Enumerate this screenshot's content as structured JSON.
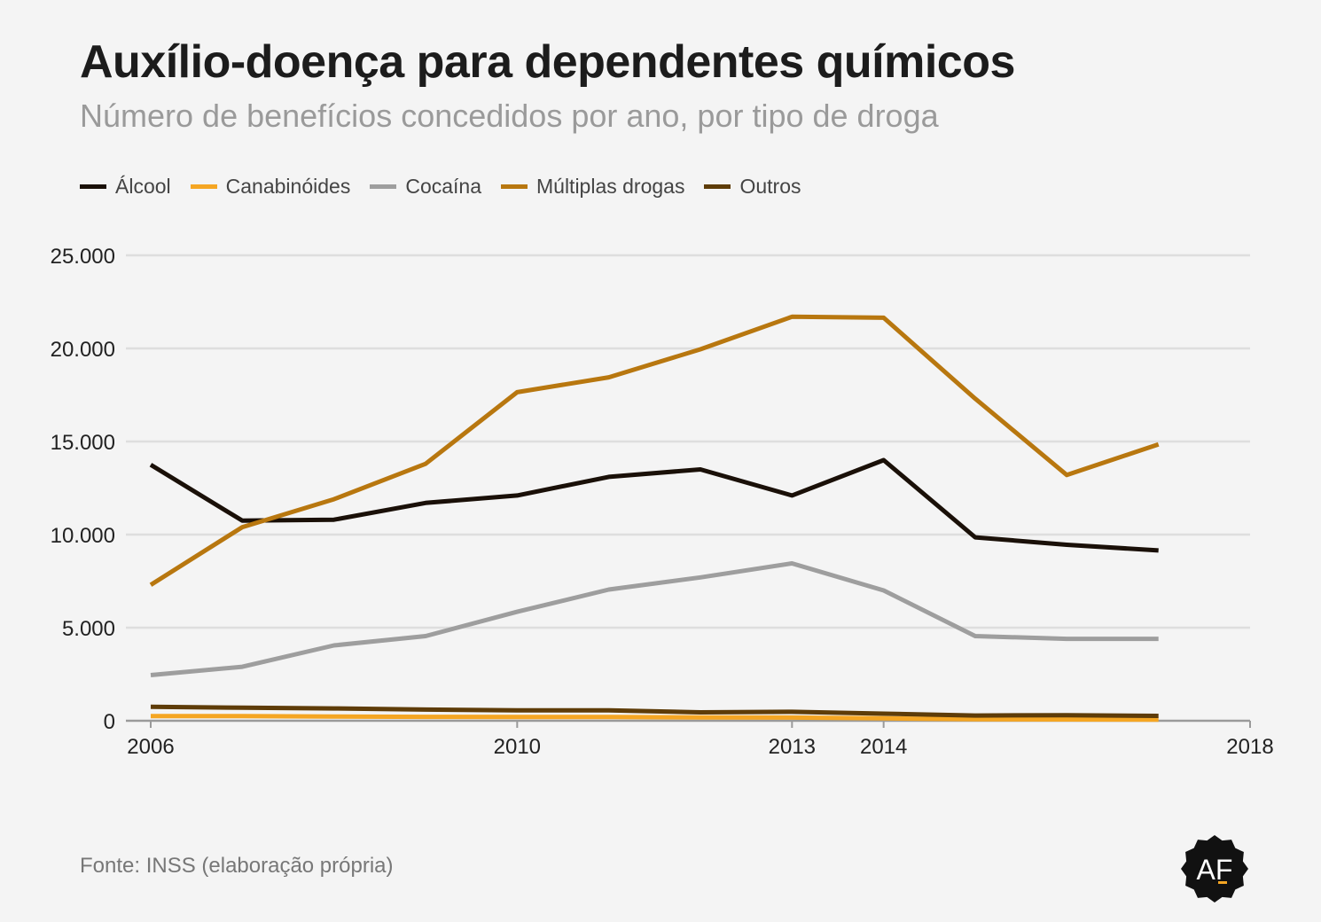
{
  "chart_data": {
    "type": "line",
    "title": "Auxílio-doença para dependentes químicos",
    "subtitle": "Número de benefícios concedidos por ano, por tipo de droga",
    "xlabel": "",
    "ylabel": "",
    "x": [
      2006,
      2007,
      2008,
      2009,
      2010,
      2011,
      2012,
      2013,
      2014,
      2015,
      2016,
      2017
    ],
    "xlim": [
      2006,
      2018
    ],
    "x_ticks": [
      2006,
      2010,
      2013,
      2014,
      2018
    ],
    "ylim": [
      0,
      25000
    ],
    "y_ticks": [
      0,
      5000,
      10000,
      15000,
      20000,
      25000
    ],
    "y_tick_labels": [
      "0",
      "5.000",
      "10.000",
      "15.000",
      "20.000",
      "25.000"
    ],
    "grid": true,
    "legend_position": "top-left",
    "series": [
      {
        "name": "Álcool",
        "color": "#1a1008",
        "values": [
          13750,
          10750,
          10800,
          11700,
          12100,
          13100,
          13500,
          12100,
          14000,
          9850,
          9450,
          9150
        ]
      },
      {
        "name": "Canabinóides",
        "color": "#f5a623",
        "values": [
          250,
          250,
          230,
          210,
          200,
          200,
          180,
          170,
          130,
          80,
          70,
          60
        ]
      },
      {
        "name": "Cocaína",
        "color": "#9e9e9e",
        "values": [
          2450,
          2900,
          4050,
          4550,
          5850,
          7050,
          7700,
          8450,
          7000,
          4550,
          4400,
          4400
        ]
      },
      {
        "name": "Múltiplas drogas",
        "color": "#b8770f",
        "values": [
          7300,
          10400,
          11900,
          13800,
          17650,
          18450,
          19950,
          21700,
          21650,
          17300,
          13200,
          14850
        ]
      },
      {
        "name": "Outros",
        "color": "#5e3c08",
        "values": [
          750,
          700,
          660,
          600,
          560,
          560,
          450,
          480,
          380,
          280,
          300,
          260
        ]
      }
    ]
  },
  "source": "Fonte: INSS (elaboração própria)",
  "logo": {
    "text": "AF",
    "icon": "af-badge-icon"
  }
}
